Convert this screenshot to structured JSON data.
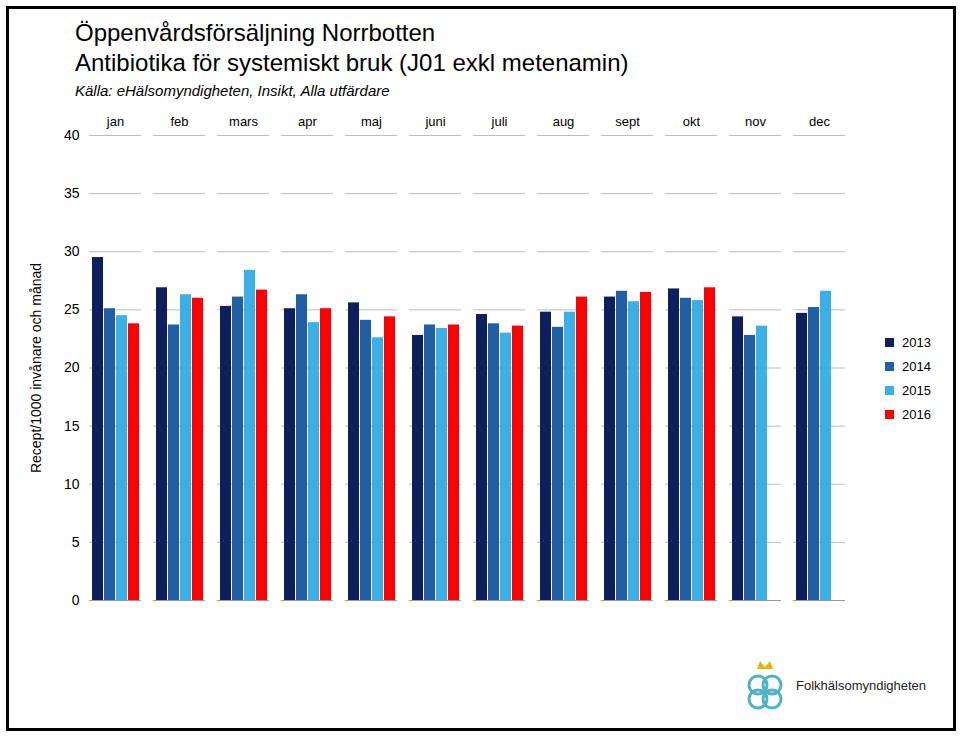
{
  "chart_data": {
    "type": "bar",
    "title": "Öppenvårdsförsäljning Norrbotten",
    "subtitle": "Antibiotika för systemiskt bruk (J01 exkl metenamin)",
    "caption": "Källa: eHälsomyndigheten, Insikt, Alla utfärdare",
    "annotations": [
      "Folkhälsomyndigheten"
    ],
    "y_label": "Recept/1000 invånare och månad",
    "categories": [
      "jan",
      "feb",
      "mars",
      "apr",
      "maj",
      "juni",
      "juli",
      "aug",
      "sept",
      "okt",
      "nov",
      "dec"
    ],
    "series": [
      {
        "name": "2013",
        "color": "#0d1f5e",
        "values": [
          29.5,
          26.9,
          25.3,
          25.1,
          25.6,
          22.8,
          24.6,
          24.8,
          26.1,
          26.8,
          24.4,
          24.7
        ]
      },
      {
        "name": "2014",
        "color": "#1f5fa8",
        "values": [
          25.1,
          23.7,
          26.1,
          26.3,
          24.1,
          23.7,
          23.8,
          23.5,
          26.6,
          26.0,
          22.8,
          25.2
        ]
      },
      {
        "name": "2015",
        "color": "#3bb0e8",
        "values": [
          24.5,
          26.3,
          28.4,
          23.9,
          22.6,
          23.4,
          23.0,
          24.8,
          25.7,
          25.8,
          23.6,
          26.6
        ]
      },
      {
        "name": "2016",
        "color": "#ff0000",
        "values": [
          23.8,
          26.0,
          26.7,
          25.1,
          24.4,
          23.7,
          23.6,
          26.1,
          26.5,
          26.9,
          null,
          null
        ]
      }
    ],
    "ylim": [
      0,
      40
    ],
    "yticks": [
      0,
      5,
      10,
      15,
      20,
      25,
      30,
      35,
      40
    ],
    "grid": true,
    "legend": "right"
  }
}
